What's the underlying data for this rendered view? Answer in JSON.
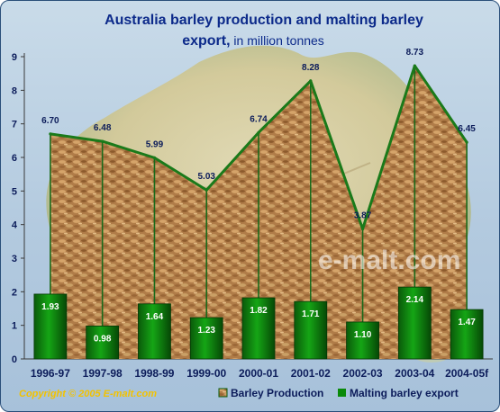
{
  "chart_data": {
    "type": "bar",
    "title": "Australia barley production and malting barley",
    "title_line2_bold": "export,",
    "title_line2_rest": " in million tonnes",
    "categories": [
      "1996-97",
      "1997-98",
      "1998-99",
      "1999-00",
      "2000-01",
      "2001-02",
      "2002-03",
      "2003-04",
      "2004-05f"
    ],
    "series": [
      {
        "name": "Barley Production",
        "kind": "area",
        "values": [
          6.7,
          6.48,
          5.99,
          5.03,
          6.74,
          8.28,
          3.87,
          8.73,
          6.45
        ],
        "labels": [
          "6.70",
          "6.48",
          "5.99",
          "5.03",
          "6.74",
          "8.28",
          "3.87",
          "8.73",
          "6.45"
        ],
        "color": "#1a7a1a"
      },
      {
        "name": "Malting barley export",
        "kind": "bar",
        "values": [
          1.93,
          0.98,
          1.64,
          1.23,
          1.82,
          1.71,
          1.1,
          2.14,
          1.47
        ],
        "labels": [
          "1.93",
          "0.98",
          "1.64",
          "1.23",
          "1.82",
          "1.71",
          "1.10",
          "2.14",
          "1.47"
        ],
        "color": "#0a8a0a"
      }
    ],
    "ylim": [
      0,
      9
    ],
    "yticks": [
      "0",
      "1",
      "2",
      "3",
      "4",
      "5",
      "6",
      "7",
      "8",
      "9"
    ],
    "grid": false,
    "legend_position": "bottom-right",
    "watermark": "e-malt.com",
    "copyright": "Copyright © 2005  E-malt.com"
  }
}
